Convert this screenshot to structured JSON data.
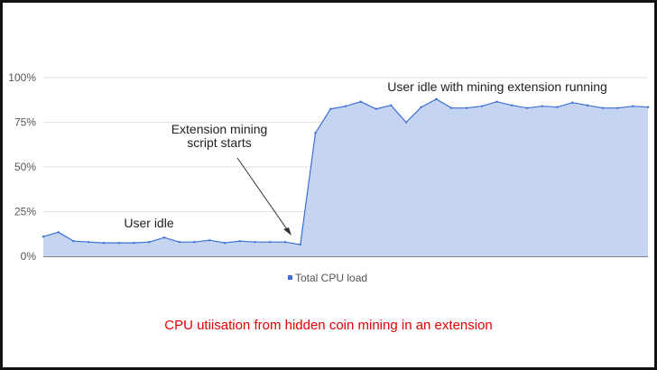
{
  "chart_data": {
    "type": "area",
    "title": "",
    "xlabel": "",
    "ylabel": "",
    "ylim": [
      0,
      100
    ],
    "y_tick_labels": [
      "0%",
      "25%",
      "50%",
      "75%",
      "100%"
    ],
    "y_tick_values": [
      0,
      25,
      50,
      75,
      100
    ],
    "grid": "horizontal",
    "legend_placement": "bottom-center",
    "series": [
      {
        "name": "Total CPU load",
        "color": "#3c6fd6",
        "fill": "#c5d4f1",
        "values": [
          11,
          13.5,
          8.5,
          8,
          7.5,
          7.5,
          7.5,
          8,
          10.5,
          8,
          8,
          9,
          7.5,
          8.5,
          8,
          8,
          8,
          6.5,
          69,
          82.5,
          84,
          86.5,
          82.5,
          84.5,
          75,
          83.5,
          88,
          83,
          83,
          84,
          86.5,
          84.5,
          83,
          84,
          83.5,
          86,
          84.5,
          83,
          83,
          84,
          83.5
        ]
      }
    ],
    "annotations": [
      {
        "text": "User idle",
        "at_index": 7,
        "value": 16
      },
      {
        "text": "Extension mining",
        "line2": "script starts",
        "arrow_to_index": 17
      },
      {
        "text": "User idle with mining extension running",
        "at_index": 29,
        "value": 94
      }
    ]
  },
  "caption": {
    "text": "CPU utiisation from hidden coin mining in an extension",
    "color": "#e60000"
  }
}
